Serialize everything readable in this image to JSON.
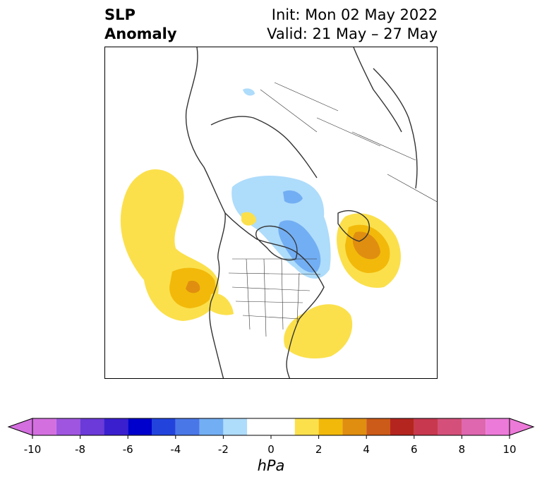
{
  "title": {
    "variable_line1": "SLP",
    "variable_line2": "Anomaly",
    "init": "Init: Mon 02 May 2022",
    "valid": "Valid: 21 May – 27 May"
  },
  "colorbar": {
    "unit": "hPa",
    "ticks": [
      "-10",
      "-8",
      "-6",
      "-4",
      "-2",
      "0",
      "2",
      "4",
      "6",
      "8",
      "10"
    ],
    "levels": [
      -10,
      -9,
      -8,
      -7,
      -6,
      -5,
      -4,
      -3,
      -2,
      -1,
      1,
      2,
      3,
      4,
      5,
      6,
      7,
      8,
      9,
      10
    ],
    "colors": [
      "#d46fe0",
      "#a055e0",
      "#6b3ad9",
      "#3a1fcf",
      "#0000cc",
      "#2244dd",
      "#4a77e8",
      "#72aef3",
      "#aedcfb",
      "#ffffff",
      "#fbe04c",
      "#f2b90a",
      "#e08e10",
      "#cc5a18",
      "#b5251f",
      "#c8384f",
      "#d4507a",
      "#de67b0",
      "#ec7ad8"
    ],
    "under_color": "#d46fe0",
    "over_color": "#ec7ad8"
  }
}
